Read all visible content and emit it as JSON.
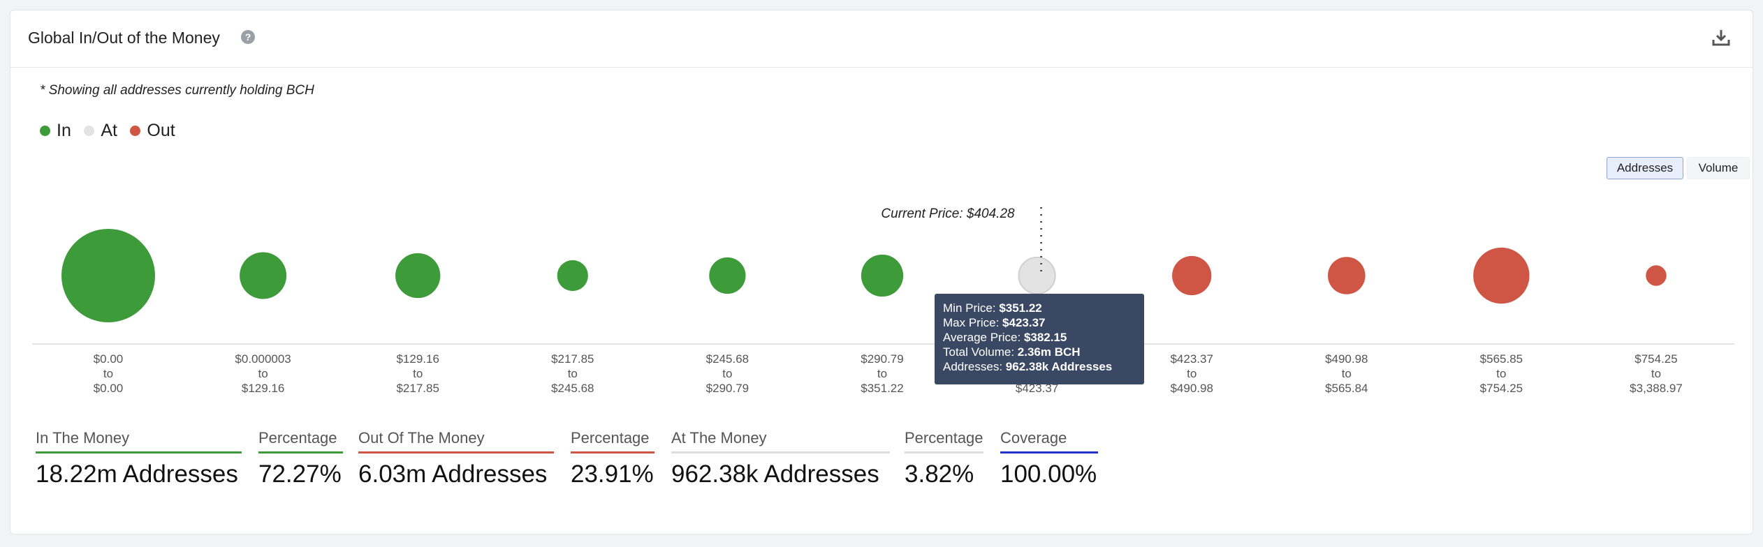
{
  "header": {
    "title": "Global In/Out of the Money"
  },
  "subtitle": "* Showing all addresses currently holding BCH",
  "legend": [
    {
      "label": "In",
      "color": "#3e9b3a"
    },
    {
      "label": "At",
      "color": "#e3e3e3"
    },
    {
      "label": "Out",
      "color": "#cf5544"
    }
  ],
  "toggle": {
    "addresses": "Addresses",
    "volume": "Volume",
    "selected": "Addresses"
  },
  "current_price_label": "Current Price: $404.28",
  "tooltip": {
    "min_label": "Min Price:",
    "min_value": "$351.22",
    "max_label": "Max Price:",
    "max_value": "$423.37",
    "avg_label": "Average Price:",
    "avg_value": "$382.15",
    "vol_label": "Total Volume:",
    "vol_value": "2.36m BCH",
    "addr_label": "Addresses:",
    "addr_value": "962.38k Addresses"
  },
  "chart_data": {
    "type": "bubble",
    "current_price": 404.28,
    "categories": [
      {
        "from": "$0.00",
        "to": "$0.00",
        "status": "in",
        "relative_size": 1.0
      },
      {
        "from": "$0.000003",
        "to": "$129.16",
        "status": "in",
        "relative_size": 0.5
      },
      {
        "from": "$129.16",
        "to": "$217.85",
        "status": "in",
        "relative_size": 0.48
      },
      {
        "from": "$217.85",
        "to": "$245.68",
        "status": "in",
        "relative_size": 0.33
      },
      {
        "from": "$245.68",
        "to": "$290.79",
        "status": "in",
        "relative_size": 0.39
      },
      {
        "from": "$290.79",
        "to": "$351.22",
        "status": "in",
        "relative_size": 0.45
      },
      {
        "from": "$351.22",
        "to": "$423.37",
        "status": "at",
        "relative_size": 0.39
      },
      {
        "from": "$423.37",
        "to": "$490.98",
        "status": "out",
        "relative_size": 0.42
      },
      {
        "from": "$490.98",
        "to": "$565.84",
        "status": "out",
        "relative_size": 0.4
      },
      {
        "from": "$565.85",
        "to": "$754.25",
        "status": "out",
        "relative_size": 0.6
      },
      {
        "from": "$754.25",
        "to": "$3,388.97",
        "status": "out",
        "relative_size": 0.22
      }
    ],
    "tick_connector": "to",
    "colors": {
      "in": "#3e9b3a",
      "at": "#e3e3e3",
      "out": "#cf5544"
    }
  },
  "stats": [
    {
      "label": "In The Money",
      "value": "18.22m Addresses",
      "color": "#3e9b3a"
    },
    {
      "label": "Percentage",
      "value": "72.27%",
      "color": "#3e9b3a"
    },
    {
      "label": "Out Of The Money",
      "value": "6.03m Addresses",
      "color": "#cf5544"
    },
    {
      "label": "Percentage",
      "value": "23.91%",
      "color": "#cf5544"
    },
    {
      "label": "At The Money",
      "value": "962.38k Addresses",
      "color": "#dddddd"
    },
    {
      "label": "Percentage",
      "value": "3.82%",
      "color": "#dddddd"
    },
    {
      "label": "Coverage",
      "value": "100.00%",
      "color": "#2233cc"
    }
  ]
}
